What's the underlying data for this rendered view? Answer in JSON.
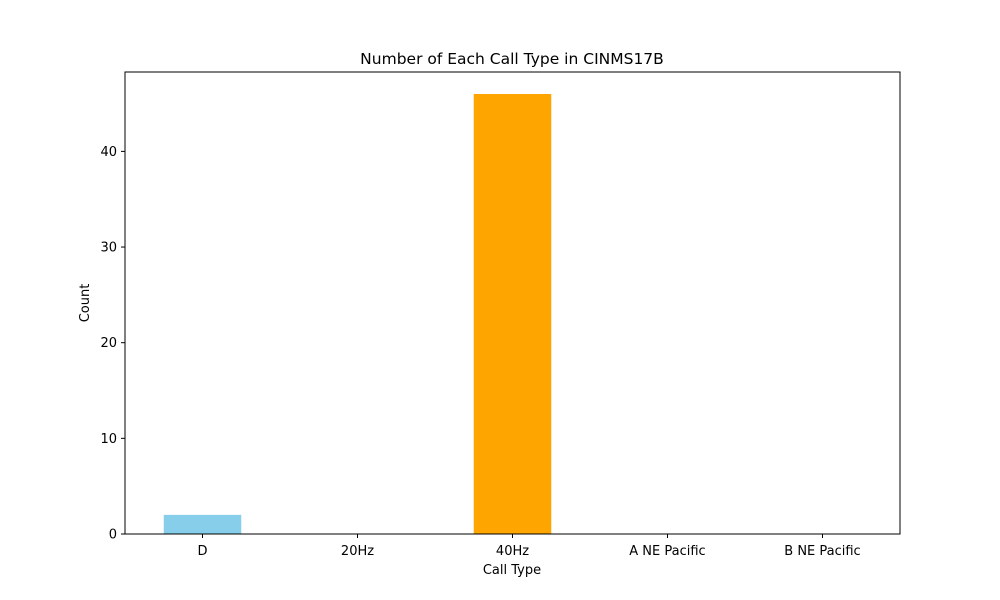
{
  "chart_data": {
    "type": "bar",
    "title": "Number of Each Call Type in CINMS17B",
    "xlabel": "Call Type",
    "ylabel": "Count",
    "categories": [
      "D",
      "20Hz",
      "40Hz",
      "A NE Pacific",
      "B NE Pacific"
    ],
    "values": [
      2,
      0,
      46,
      0,
      0
    ],
    "colors": [
      "#87ceeb",
      "#87ceeb",
      "#ffa500",
      "#87ceeb",
      "#87ceeb"
    ],
    "ylim": [
      0,
      48.3
    ],
    "yticks": [
      0,
      10,
      20,
      30,
      40
    ],
    "ytick_labels": [
      "0",
      "10",
      "20",
      "30",
      "40"
    ],
    "grid": false,
    "legend": "none"
  }
}
